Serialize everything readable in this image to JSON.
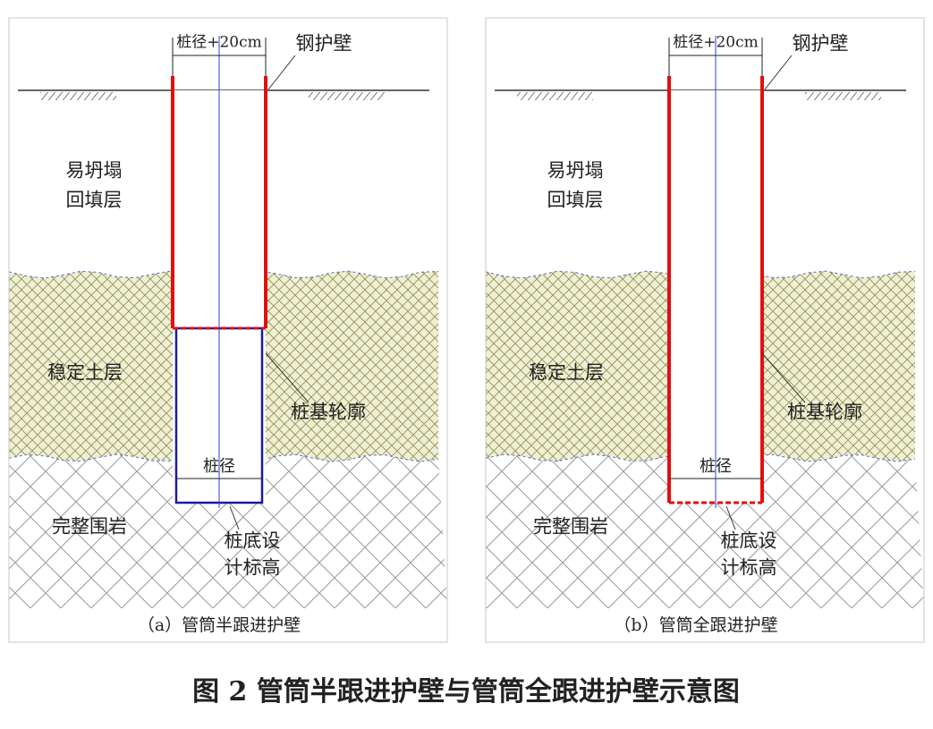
{
  "panels": [
    {
      "dimension_top": "桩径+20cm",
      "casing": "钢护壁",
      "upper_layer": [
        "易坍塌",
        "回填层"
      ],
      "middle_layer": "稳定土层",
      "outline": "桩基轮廓",
      "dimension_bottom": "桩径",
      "lower_layer": "完整围岩",
      "base": [
        "桩底设",
        "计标高"
      ],
      "caption": "（a）管筒半跟进护壁"
    },
    {
      "dimension_top": "桩径+20cm",
      "casing": "钢护壁",
      "upper_layer": [
        "易坍塌",
        "回填层"
      ],
      "middle_layer": "稳定土层",
      "outline": "桩基轮廓",
      "dimension_bottom": "桩径",
      "lower_layer": "完整围岩",
      "base": [
        "桩底设",
        "计标高"
      ],
      "caption": "（b）管筒全跟进护壁"
    }
  ],
  "figure_caption": "图 2  管筒半跟进护壁与管筒全跟进护壁示意图"
}
